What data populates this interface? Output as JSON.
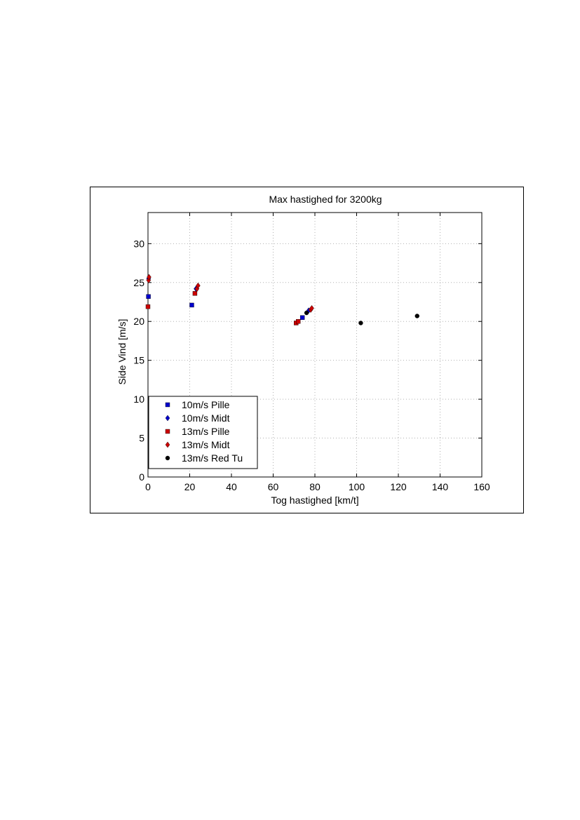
{
  "chart_data": {
    "type": "scatter",
    "title": "Max hastighed for 3200kg",
    "xlabel": "Tog hastighed [km/t]",
    "ylabel": "Side Vind [m/s]",
    "xlim": [
      0,
      160
    ],
    "ylim": [
      0,
      34
    ],
    "xticks": [
      0,
      20,
      40,
      60,
      80,
      100,
      120,
      140,
      160
    ],
    "yticks": [
      0,
      5,
      10,
      15,
      20,
      25,
      30
    ],
    "grid": true,
    "legend_position": "bottom-left",
    "series": [
      {
        "name": "10m/s Pille",
        "marker": "square",
        "color": "#0000cc",
        "points": [
          [
            0.2,
            23.2
          ],
          [
            21,
            22.1
          ],
          [
            74,
            20.5
          ]
        ]
      },
      {
        "name": "10m/s Midt",
        "marker": "diamond",
        "color": "#0000cc",
        "points": [
          [
            0.3,
            25.5
          ],
          [
            23,
            24.2
          ],
          [
            77,
            21.4
          ]
        ]
      },
      {
        "name": "13m/s Pille",
        "marker": "square",
        "color": "#cc0000",
        "points": [
          [
            0,
            21.9
          ],
          [
            22.5,
            23.6
          ],
          [
            71,
            19.8
          ],
          [
            72,
            20.0
          ]
        ]
      },
      {
        "name": "13m/s Midt",
        "marker": "diamond",
        "color": "#cc0000",
        "points": [
          [
            0.3,
            25.3
          ],
          [
            0.5,
            25.7
          ],
          [
            23.5,
            24.2
          ],
          [
            24,
            24.6
          ],
          [
            78,
            21.5
          ],
          [
            78.5,
            21.7
          ]
        ]
      },
      {
        "name": "13m/s Red Tu",
        "marker": "circle",
        "color": "#000000",
        "points": [
          [
            76,
            21.1
          ],
          [
            102,
            19.8
          ],
          [
            129,
            20.7
          ]
        ]
      }
    ]
  }
}
